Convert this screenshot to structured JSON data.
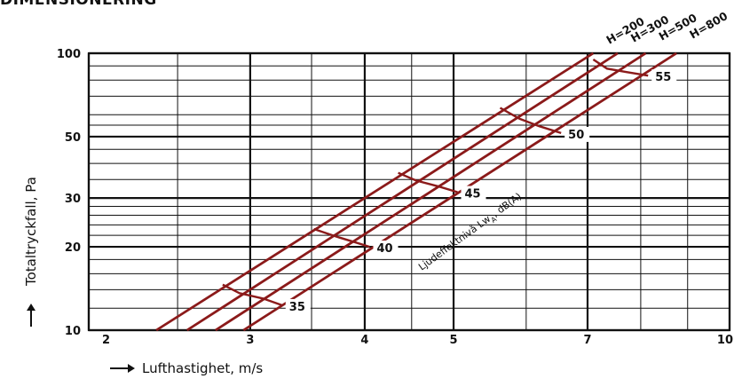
{
  "heading": "DIMENSIONERING",
  "chart_data": {
    "type": "line",
    "xlabel": "Lufthastighet, m/s",
    "ylabel": "Totaltryckfall, Pa",
    "x_scale": "log",
    "y_scale": "log",
    "xlim": [
      2,
      10
    ],
    "ylim": [
      10,
      100
    ],
    "x_ticks": [
      2,
      3,
      4,
      5,
      7,
      10
    ],
    "y_ticks": [
      10,
      20,
      30,
      50,
      100
    ],
    "x_major_lines": [
      2,
      3,
      4,
      5,
      7,
      10
    ],
    "x_minor_lines": [
      2.5,
      3.5,
      4.5,
      6,
      8,
      9
    ],
    "y_major_lines": [
      10,
      20,
      30,
      50,
      100
    ],
    "y_minor_lines": [
      12,
      14,
      16,
      18,
      22,
      24,
      26,
      28,
      35,
      40,
      45,
      55,
      60,
      70,
      80,
      90
    ],
    "grid": true,
    "series": [
      {
        "name": "H=200",
        "x": [
          2.37,
          7.1
        ],
        "y": [
          10,
          100
        ]
      },
      {
        "name": "H=300",
        "x": [
          2.56,
          7.55
        ],
        "y": [
          10,
          100
        ]
      },
      {
        "name": "H=500",
        "x": [
          2.75,
          8.1
        ],
        "y": [
          10,
          100
        ]
      },
      {
        "name": "H=800",
        "x": [
          2.95,
          8.75
        ],
        "y": [
          10,
          100
        ]
      }
    ],
    "sound_isolines": [
      {
        "label": "35",
        "points": [
          [
            2.8,
            14.6
          ],
          [
            2.92,
            13.6
          ],
          [
            3.1,
            13.0
          ],
          [
            3.25,
            12.3
          ]
        ]
      },
      {
        "label": "40",
        "points": [
          [
            3.52,
            23.2
          ],
          [
            3.72,
            21.8
          ],
          [
            3.9,
            20.8
          ],
          [
            4.05,
            20.0
          ]
        ]
      },
      {
        "label": "45",
        "points": [
          [
            4.35,
            37.0
          ],
          [
            4.55,
            34.7
          ],
          [
            4.82,
            33.0
          ],
          [
            5.05,
            31.5
          ]
        ]
      },
      {
        "label": "50",
        "points": [
          [
            5.62,
            63.5
          ],
          [
            5.9,
            58.0
          ],
          [
            6.2,
            54.5
          ],
          [
            6.55,
            51.5
          ]
        ]
      },
      {
        "label": "55",
        "points": [
          [
            7.1,
            95.0
          ],
          [
            7.35,
            88.0
          ],
          [
            7.72,
            85.5
          ],
          [
            8.15,
            83.0
          ]
        ]
      }
    ],
    "annotation": "Ljudeffektnivå Lw",
    "annotation_sub": "A",
    "annotation_suffix": ", dB(A)",
    "colors": {
      "curves": "#8b1a1a",
      "grid": "#111111"
    }
  }
}
